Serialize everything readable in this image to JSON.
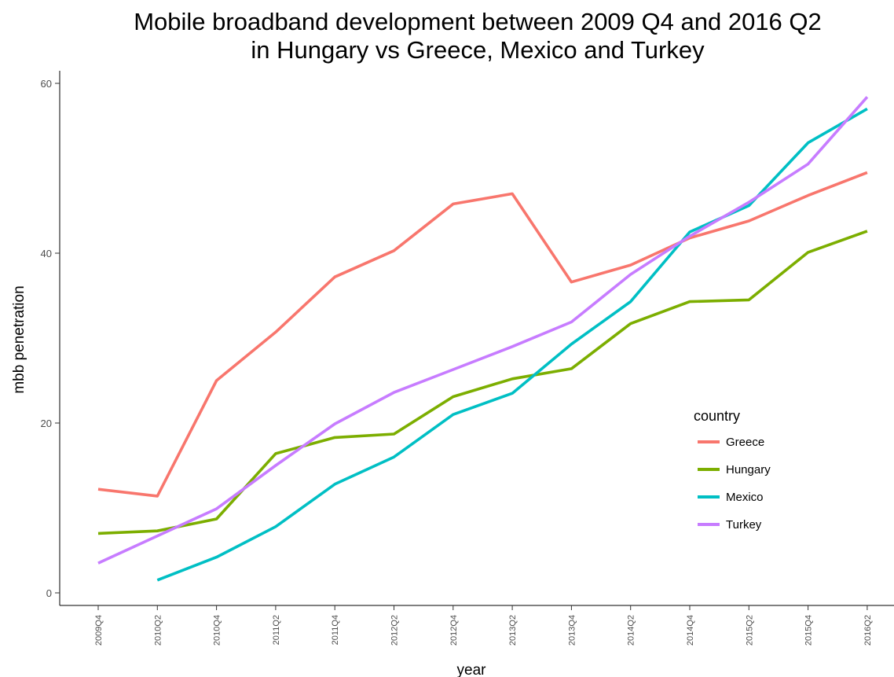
{
  "chart_data": {
    "type": "line",
    "title": [
      "Mobile broadband development between 2009 Q4 and 2016 Q2",
      "in Hungary vs Greece, Mexico and Turkey"
    ],
    "xlabel": "year",
    "ylabel": "mbb penetration",
    "categories": [
      "2009Q4",
      "2010Q2",
      "2010Q4",
      "2011Q2",
      "2011Q4",
      "2012Q2",
      "2012Q4",
      "2013Q2",
      "2013Q4",
      "2014Q2",
      "2014Q4",
      "2015Q2",
      "2015Q4",
      "2016Q2"
    ],
    "ylim": [
      -1,
      61.5
    ],
    "yticks": [
      0,
      20,
      40,
      60
    ],
    "grid": false,
    "legend": {
      "title": "country",
      "position": "right"
    },
    "series": [
      {
        "name": "Greece",
        "color": "#F8766D",
        "values": [
          12.2,
          11.4,
          25.0,
          30.7,
          37.2,
          40.3,
          45.8,
          47.0,
          36.6,
          38.6,
          41.8,
          43.8,
          46.8,
          49.5
        ]
      },
      {
        "name": "Hungary",
        "color": "#7CAE00",
        "values": [
          7.0,
          7.3,
          8.7,
          16.4,
          18.3,
          18.7,
          23.1,
          25.2,
          26.4,
          31.7,
          34.3,
          34.5,
          40.1,
          42.6
        ]
      },
      {
        "name": "Mexico",
        "color": "#00BFC4",
        "values": [
          null,
          1.5,
          4.2,
          7.8,
          12.8,
          16.0,
          21.0,
          23.5,
          29.3,
          34.3,
          42.5,
          45.6,
          53.0,
          57.0
        ]
      },
      {
        "name": "Turkey",
        "color": "#C77CFF",
        "values": [
          3.5,
          6.7,
          9.9,
          15.0,
          19.9,
          23.6,
          26.3,
          29.0,
          31.9,
          37.5,
          42.0,
          46.0,
          50.5,
          58.4
        ]
      }
    ]
  }
}
